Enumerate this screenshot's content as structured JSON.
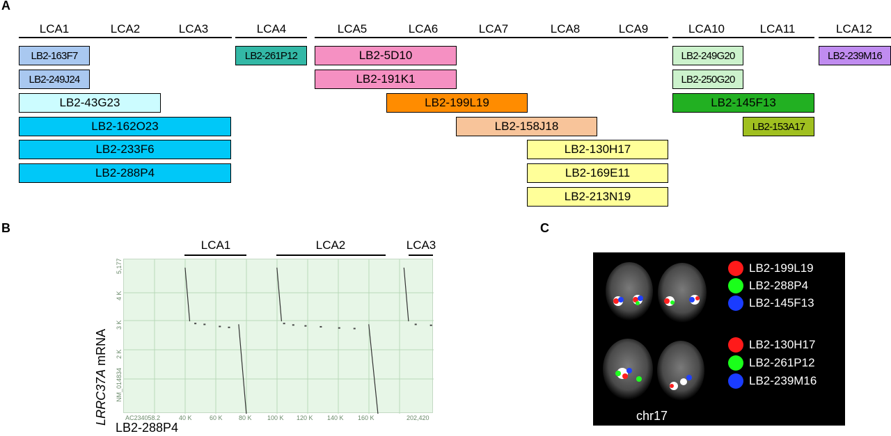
{
  "panel_a": {
    "letter": "A",
    "groups": [
      {
        "labels": [
          "LCA1",
          "LCA2",
          "LCA3"
        ]
      },
      {
        "labels": [
          "LCA4"
        ]
      },
      {
        "labels": [
          "LCA5",
          "LCA6",
          "LCA7",
          "LCA8",
          "LCA9"
        ]
      },
      {
        "labels": [
          "LCA10",
          "LCA11"
        ]
      },
      {
        "labels": [
          "LCA12"
        ]
      }
    ],
    "clones": [
      {
        "name": "LB2-163F7",
        "color": "#a9c8f0"
      },
      {
        "name": "LB2-249J24",
        "color": "#a9c8f0"
      },
      {
        "name": "LB2-43G23",
        "color": "#ccfcff"
      },
      {
        "name": "LB2-162O23",
        "color": "#00c8f8"
      },
      {
        "name": "LB2-233F6",
        "color": "#00c8f8"
      },
      {
        "name": "LB2-288P4",
        "color": "#00c8f8"
      },
      {
        "name": "LB2-261P12",
        "color": "#33b8a6"
      },
      {
        "name": "LB2-5D10",
        "color": "#f590c2"
      },
      {
        "name": "LB2-191K1",
        "color": "#f590c2"
      },
      {
        "name": "LB2-199L19",
        "color": "#ff8c00"
      },
      {
        "name": "LB2-158J18",
        "color": "#f8c49a"
      },
      {
        "name": "LB2-130H17",
        "color": "#ffff99"
      },
      {
        "name": "LB2-169E11",
        "color": "#ffff99"
      },
      {
        "name": "LB2-213N19",
        "color": "#ffff99"
      },
      {
        "name": "LB2-249G20",
        "color": "#ccf2cc"
      },
      {
        "name": "LB2-250G20",
        "color": "#ccf2cc"
      },
      {
        "name": "LB2-145F13",
        "color": "#22b022"
      },
      {
        "name": "LB2-153A17",
        "color": "#a0c020"
      },
      {
        "name": "LB2-239M16",
        "color": "#c08cf0"
      }
    ]
  },
  "panel_b": {
    "letter": "B",
    "lca_labels": [
      "LCA1",
      "LCA2",
      "LCA3"
    ],
    "y_axis_label_italic": "LRRC37A",
    "y_axis_label_rest": " mRNA",
    "x_axis_label": "LB2-288P4",
    "y_ticks": [
      "5,177",
      "4 K",
      "3 K",
      "2 K",
      "NM_014834"
    ],
    "x_ticks": [
      "AC234058.2",
      "40 K",
      "60 K",
      "80 K",
      "100 K",
      "120 K",
      "140 K",
      "160 K",
      "202,420"
    ],
    "background_color": "#e7f6e7",
    "chart_data": {
      "type": "scatter",
      "xlabel": "LB2-288P4",
      "ylabel": "LRRC37A mRNA",
      "segments": [
        {
          "x": [
            40000,
            43000
          ],
          "y": [
            4900,
            3100
          ]
        },
        {
          "x": [
            100000,
            103000
          ],
          "y": [
            4900,
            3100
          ]
        },
        {
          "x": [
            183000,
            186000
          ],
          "y": [
            4900,
            3100
          ]
        },
        {
          "x": [
            75000,
            80000
          ],
          "y": [
            3000,
            0
          ]
        },
        {
          "x": [
            160000,
            166000
          ],
          "y": [
            3000,
            0
          ]
        }
      ]
    }
  },
  "panel_c": {
    "letter": "C",
    "caption": "chr17",
    "legend_top": [
      {
        "label": "LB2-199L19",
        "color": "#ff1a1a"
      },
      {
        "label": "LB2-288P4",
        "color": "#1aff1a"
      },
      {
        "label": "LB2-145F13",
        "color": "#1a3cff"
      }
    ],
    "legend_bottom": [
      {
        "label": "LB2-130H17",
        "color": "#ff1a1a"
      },
      {
        "label": "LB2-261P12",
        "color": "#1aff1a"
      },
      {
        "label": "LB2-239M16",
        "color": "#1a3cff"
      }
    ]
  }
}
